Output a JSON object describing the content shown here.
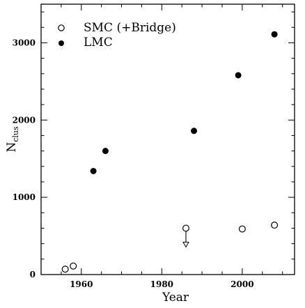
{
  "chart_data": {
    "type": "scatter",
    "xlabel": "Year",
    "ylabel": {
      "main": "N",
      "sub": "clus"
    },
    "xlim": [
      1950,
      2013
    ],
    "ylim": [
      0,
      3500
    ],
    "x_ticks": [
      1960,
      1980,
      2000
    ],
    "y_ticks": [
      0,
      1000,
      2000,
      3000
    ],
    "grid": false,
    "legend_position": "top-left",
    "series": [
      {
        "name": "SMC (+Bridge)",
        "marker": "open-circle",
        "points": [
          {
            "x": 1956,
            "y": 70
          },
          {
            "x": 1958,
            "y": 110
          },
          {
            "x": 1986,
            "y": 600,
            "upper_limit": true
          },
          {
            "x": 2000,
            "y": 590
          },
          {
            "x": 2008,
            "y": 640
          }
        ]
      },
      {
        "name": "LMC",
        "marker": "filled-circle",
        "points": [
          {
            "x": 1963,
            "y": 1340
          },
          {
            "x": 1966,
            "y": 1600
          },
          {
            "x": 1988,
            "y": 1860
          },
          {
            "x": 1999,
            "y": 2580
          },
          {
            "x": 2008,
            "y": 3110
          }
        ]
      }
    ]
  }
}
